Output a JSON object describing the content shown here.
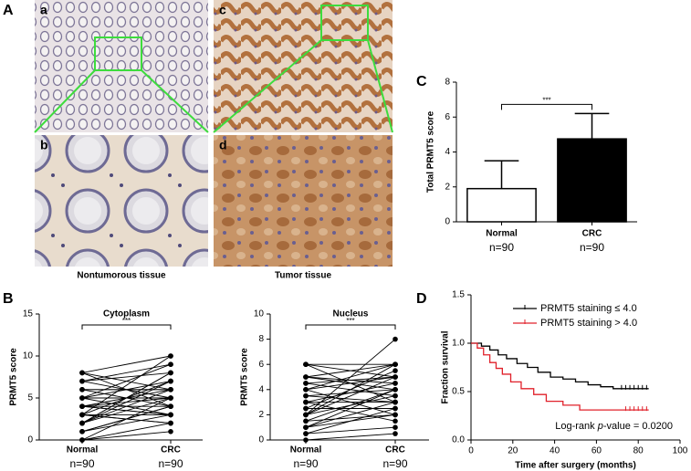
{
  "figure": {
    "panel_letters": [
      "A",
      "B",
      "C",
      "D"
    ],
    "images": [
      {
        "label": "a"
      },
      {
        "label": "b"
      },
      {
        "label": "c"
      },
      {
        "label": "d"
      }
    ],
    "captions": [
      "Nontumorous tissue",
      "Tumor tissue"
    ]
  },
  "chart_data": [
    {
      "type": "bar",
      "ylabel": "Total PRMT5 score",
      "categories": [
        "Normal",
        "CRC"
      ],
      "sample_sizes": [
        "n=90",
        "n=90"
      ],
      "values": [
        1.9,
        4.75
      ],
      "errors": [
        1.6,
        1.45
      ],
      "colors": [
        "#ffffff",
        "#000000"
      ],
      "significance": "***",
      "ylim": [
        0,
        8
      ],
      "yticks": [
        0,
        2,
        4,
        6,
        8
      ]
    },
    {
      "type": "paired",
      "title": "Cytoplasm",
      "ylabel": "PRMT5 score",
      "categories": [
        "Normal",
        "CRC"
      ],
      "sample_sizes": [
        "n=90",
        "n=90"
      ],
      "significance": "***",
      "ylim": [
        0,
        15
      ],
      "yticks": [
        0,
        5,
        10,
        15
      ],
      "values": [
        [
          0,
          1
        ],
        [
          0,
          2
        ],
        [
          1,
          3
        ],
        [
          1,
          4
        ],
        [
          2,
          5
        ],
        [
          2,
          6
        ],
        [
          2,
          8
        ],
        [
          3,
          10
        ],
        [
          3,
          2
        ],
        [
          3,
          3
        ],
        [
          4,
          6
        ],
        [
          4,
          4
        ],
        [
          4,
          5
        ],
        [
          5,
          7
        ],
        [
          5,
          9
        ],
        [
          5,
          3
        ],
        [
          6,
          4
        ],
        [
          6,
          6
        ],
        [
          7,
          5
        ],
        [
          7,
          8
        ],
        [
          8,
          6
        ],
        [
          8,
          10
        ],
        [
          1,
          4
        ],
        [
          2,
          7
        ],
        [
          3,
          2
        ],
        [
          4,
          3
        ],
        [
          5,
          5
        ],
        [
          6,
          6
        ],
        [
          7,
          9
        ],
        [
          8,
          4
        ],
        [
          0,
          5
        ],
        [
          2,
          8
        ],
        [
          3,
          7
        ],
        [
          4,
          3
        ]
      ]
    },
    {
      "type": "paired",
      "title": "Nucleus",
      "ylabel": "PRMT5 score",
      "categories": [
        "Normal",
        "CRC"
      ],
      "sample_sizes": [
        "n=90",
        "n=90"
      ],
      "significance": "***",
      "ylim": [
        0,
        10
      ],
      "yticks": [
        0,
        2,
        4,
        6,
        8,
        10
      ],
      "values": [
        [
          0,
          0.5
        ],
        [
          0.5,
          1
        ],
        [
          1,
          2
        ],
        [
          1,
          3
        ],
        [
          1.5,
          4
        ],
        [
          2,
          5
        ],
        [
          2,
          6
        ],
        [
          2,
          8
        ],
        [
          2.5,
          2.5
        ],
        [
          3,
          3
        ],
        [
          3,
          4.5
        ],
        [
          3.5,
          4
        ],
        [
          4,
          5
        ],
        [
          4,
          6
        ],
        [
          4.5,
          3.5
        ],
        [
          5,
          4
        ],
        [
          5,
          6
        ],
        [
          6,
          5
        ],
        [
          6,
          3
        ],
        [
          6,
          6
        ],
        [
          1.5,
          2
        ],
        [
          2,
          3.5
        ],
        [
          3,
          1.5
        ],
        [
          4,
          2
        ],
        [
          5,
          4.5
        ],
        [
          2.5,
          5.5
        ],
        [
          1,
          4
        ],
        [
          3.5,
          3
        ],
        [
          4.5,
          5
        ],
        [
          0.5,
          2.5
        ]
      ]
    },
    {
      "type": "survival",
      "xlabel": "Time after surgery (months)",
      "ylabel": "Fraction survival",
      "xlim": [
        0,
        100
      ],
      "xticks": [
        0,
        20,
        40,
        60,
        80,
        100
      ],
      "ylim": [
        0,
        1.5
      ],
      "yticks": [
        {
          "value": 0,
          "label": "0.0"
        },
        {
          "value": 0.5,
          "label": "0.5"
        },
        {
          "value": 1,
          "label": "1.0"
        },
        {
          "value": 1.5,
          "label": "1.5"
        }
      ],
      "series": [
        {
          "name": "PRMT5 staining ≤ 4.0",
          "color": "#000000",
          "x": [
            0,
            5,
            5,
            9,
            9,
            13,
            13,
            17,
            17,
            22,
            22,
            27,
            27,
            32,
            32,
            38,
            38,
            44,
            44,
            50,
            50,
            56,
            56,
            62,
            62,
            68,
            68,
            85
          ],
          "values": [
            1,
            1,
            0.97,
            0.97,
            0.93,
            0.93,
            0.88,
            0.88,
            0.84,
            0.84,
            0.79,
            0.79,
            0.75,
            0.75,
            0.7,
            0.7,
            0.65,
            0.65,
            0.63,
            0.63,
            0.6,
            0.6,
            0.57,
            0.57,
            0.55,
            0.55,
            0.53,
            0.53
          ],
          "censored_x": [
            72,
            74,
            76,
            78,
            80,
            82,
            84
          ],
          "censored_values": [
            0.53,
            0.53,
            0.53,
            0.53,
            0.53,
            0.53,
            0.53
          ]
        },
        {
          "name": "PRMT5 staining > 4.0",
          "color": "#e0202a",
          "x": [
            0,
            3,
            3,
            6,
            6,
            9,
            9,
            12,
            12,
            15,
            15,
            19,
            19,
            24,
            24,
            30,
            30,
            36,
            36,
            44,
            44,
            52,
            52,
            85
          ],
          "values": [
            1,
            1,
            0.95,
            0.95,
            0.88,
            0.88,
            0.8,
            0.8,
            0.74,
            0.74,
            0.68,
            0.68,
            0.6,
            0.6,
            0.53,
            0.53,
            0.47,
            0.47,
            0.4,
            0.4,
            0.36,
            0.36,
            0.31,
            0.31
          ],
          "censored_x": [
            74,
            76,
            78,
            80,
            82,
            84
          ],
          "censored_values": [
            0.31,
            0.31,
            0.31,
            0.31,
            0.31,
            0.31
          ]
        }
      ],
      "annotation": [
        "Log-rank ",
        "p",
        "-value = 0.0200"
      ]
    }
  ]
}
